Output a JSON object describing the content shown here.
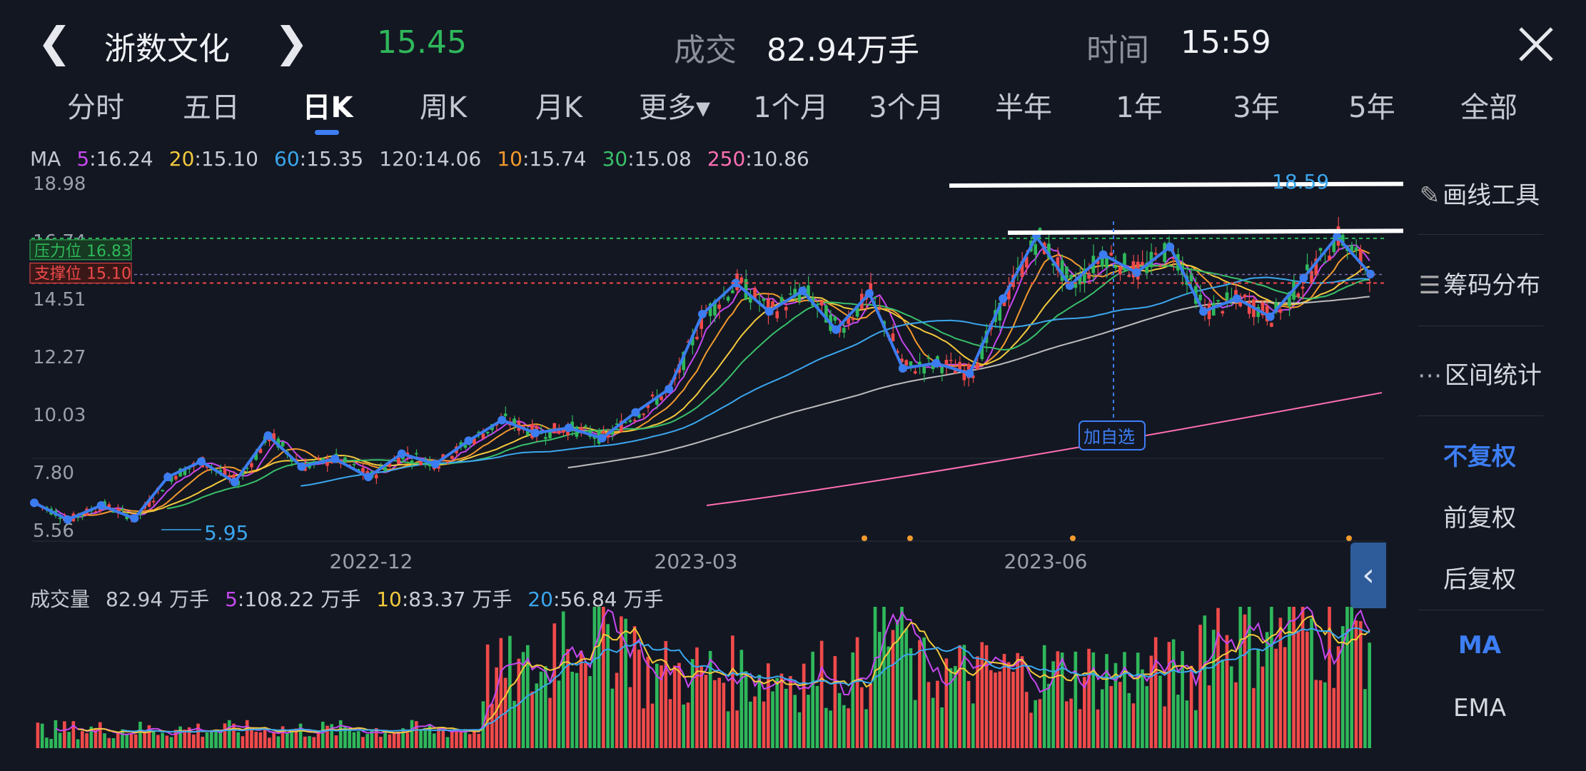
{
  "header": {
    "back_icon": "chevron-left-icon",
    "stock_name": "浙数文化",
    "next_icon": "chevron-right-icon",
    "price": "15.45",
    "volume_label": "成交",
    "volume_value": "82.94万手",
    "time_label": "时间",
    "time_value": "15:59",
    "close_icon": "close-icon"
  },
  "tabs": [
    "分时",
    "五日",
    "日K",
    "周K",
    "月K",
    "更多▾",
    "1个月",
    "3个月",
    "半年",
    "1年",
    "3年",
    "5年",
    "全部"
  ],
  "active_tab": "日K",
  "ma_legend": {
    "prefix": "MA",
    "items": [
      {
        "key": "5",
        "value": "16.24",
        "color": "#c648f0"
      },
      {
        "key": "20",
        "value": "15.10",
        "color": "#f3c93c"
      },
      {
        "key": "60",
        "value": "15.35",
        "color": "#3ba7ee"
      },
      {
        "key": "120",
        "value": "14.06",
        "color": "#bdbdbd"
      },
      {
        "key": "10",
        "value": "15.74",
        "color": "#f39a2e"
      },
      {
        "key": "30",
        "value": "15.08",
        "color": "#39c06a"
      },
      {
        "key": "250",
        "value": "10.86",
        "color": "#ff6fb3"
      }
    ]
  },
  "price_axis": [
    "18.98",
    "16.74",
    "14.51",
    "12.27",
    "10.03",
    "7.80",
    "5.56"
  ],
  "resistance_label": "压力位 16.83",
  "support_label": "支撑位 15.10",
  "high_label": "18.59",
  "low_label": "5.95",
  "add_watchlist": "加自选",
  "date_axis": [
    "2022-12",
    "2023-03",
    "2023-06"
  ],
  "volume_legend": {
    "prefix": "成交量",
    "total": "82.94 万手",
    "items": [
      {
        "key": "5",
        "value": "108.22 万手",
        "color": "#c648f0"
      },
      {
        "key": "10",
        "value": "83.37 万手",
        "color": "#f3c93c"
      },
      {
        "key": "20",
        "value": "56.84 万手",
        "color": "#3ba7ee"
      }
    ]
  },
  "side_panel": {
    "draw_tool": "画线工具",
    "chip_dist": "筹码分布",
    "range_stats": "区间统计",
    "no_adjust": "不复权",
    "forward_adjust": "前复权",
    "backward_adjust": "后复权",
    "ma": "MA",
    "ema": "EMA",
    "collapse_icon": "chevron-left-icon"
  },
  "colors": {
    "up": "#f04a4a",
    "down": "#2fb85b",
    "accent": "#3d7ef5"
  },
  "chart_data": [
    {
      "type": "candlestick",
      "title": "浙数文化 日K",
      "ylim": [
        5.56,
        18.98
      ],
      "y_ticks": [
        18.98,
        16.74,
        14.51,
        12.27,
        10.03,
        7.8,
        5.56
      ],
      "x_ticks": [
        "2022-12",
        "2023-03",
        "2023-06"
      ],
      "resistance": 16.83,
      "support": 15.1,
      "high": 18.59,
      "low": 5.95,
      "close": 15.45,
      "zigzag_closes": [
        6.6,
        5.95,
        6.5,
        6.0,
        7.6,
        8.2,
        7.4,
        9.2,
        8.0,
        8.3,
        7.6,
        8.5,
        8.1,
        9.0,
        9.8,
        9.3,
        9.5,
        9.1,
        10.1,
        11.0,
        13.9,
        15.1,
        14.0,
        14.8,
        13.3,
        14.7,
        11.8,
        12.0,
        11.6,
        14.5,
        16.9,
        15.0,
        16.2,
        15.5,
        16.5,
        14.0,
        14.5,
        13.8,
        15.3,
        16.9,
        15.45
      ],
      "series": [
        {
          "name": "MA5",
          "color": "#c648f0",
          "last": 16.24
        },
        {
          "name": "MA10",
          "color": "#f39a2e",
          "last": 15.74
        },
        {
          "name": "MA20",
          "color": "#f3c93c",
          "last": 15.1
        },
        {
          "name": "MA30",
          "color": "#39c06a",
          "last": 15.08
        },
        {
          "name": "MA60",
          "color": "#3ba7ee",
          "last": 15.35
        },
        {
          "name": "MA120",
          "color": "#bdbdbd",
          "last": 14.06
        },
        {
          "name": "MA250",
          "color": "#ff6fb3",
          "last": 10.86
        }
      ]
    },
    {
      "type": "bar",
      "title": "成交量",
      "unit": "万手",
      "last": 82.94,
      "series": [
        {
          "name": "5",
          "value": 108.22
        },
        {
          "name": "10",
          "value": 83.37
        },
        {
          "name": "20",
          "value": 56.84
        }
      ]
    }
  ]
}
